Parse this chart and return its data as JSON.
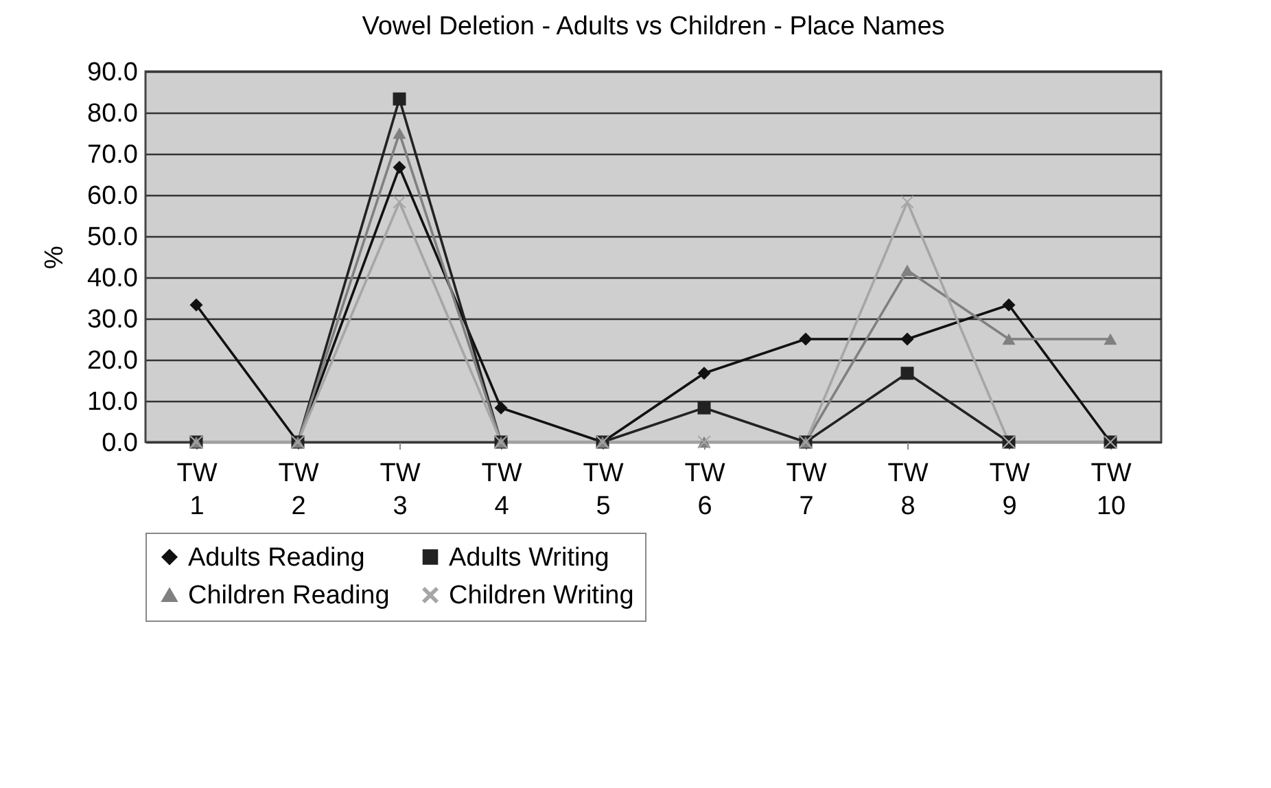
{
  "chart_data": {
    "type": "line",
    "title": "Vowel Deletion - Adults vs Children - Place Names",
    "ylabel": "%",
    "categories": [
      "TW 1",
      "TW 2",
      "TW 3",
      "TW 4",
      "TW 5",
      "TW 6",
      "TW 7",
      "TW 8",
      "TW 9",
      "TW 10"
    ],
    "series": [
      {
        "name": "Adults Reading",
        "color": "#111111",
        "marker": "diamond",
        "values": [
          33.3,
          0,
          66.7,
          8.3,
          0,
          16.7,
          25,
          25,
          33.3,
          0
        ]
      },
      {
        "name": "Adults Writing",
        "color": "#222222",
        "marker": "square",
        "values": [
          0,
          0,
          83.3,
          0,
          0,
          8.3,
          0,
          16.7,
          0,
          0
        ]
      },
      {
        "name": "Children Reading",
        "color": "#808080",
        "marker": "triangle",
        "values": [
          0,
          0,
          75,
          0,
          0,
          0,
          0,
          41.7,
          25,
          25
        ]
      },
      {
        "name": "Children Writing",
        "color": "#a6a6a6",
        "marker": "cross",
        "values": [
          0,
          0,
          58.3,
          0,
          0,
          0,
          0,
          58.3,
          0,
          0
        ]
      }
    ],
    "ylim": [
      0,
      90
    ],
    "yticks": [
      {
        "value": 0,
        "label": "0.0"
      },
      {
        "value": 10,
        "label": "10.0"
      },
      {
        "value": 20,
        "label": "20.0"
      },
      {
        "value": 30,
        "label": "30.0"
      },
      {
        "value": 40,
        "label": "40.0"
      },
      {
        "value": 50,
        "label": "50.0"
      },
      {
        "value": 60,
        "label": "60.0"
      },
      {
        "value": 70,
        "label": "70.0"
      },
      {
        "value": 80,
        "label": "80.0"
      },
      {
        "value": 90,
        "label": "90.0"
      }
    ],
    "grid": "y",
    "legend": "bottom",
    "line_style": "solid"
  }
}
